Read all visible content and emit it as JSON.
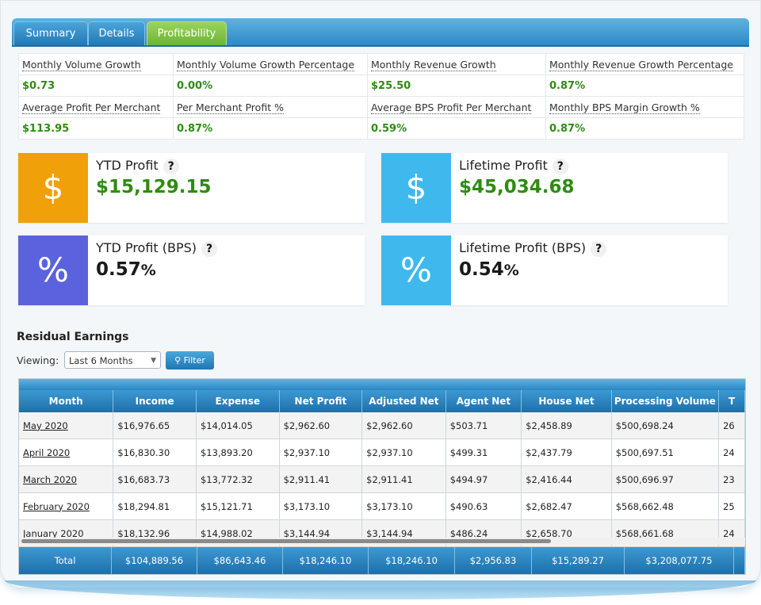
{
  "tabs": [
    {
      "label": "Summary",
      "active": false
    },
    {
      "label": "Details",
      "active": false
    },
    {
      "label": "Profitability",
      "active": true
    }
  ],
  "metrics": {
    "row1": [
      {
        "label": "Monthly Volume Growth",
        "value": "$0.73"
      },
      {
        "label": "Monthly Volume Growth Percentage",
        "value": "0.00%"
      },
      {
        "label": "Monthly Revenue Growth",
        "value": "$25.50"
      },
      {
        "label": "Monthly Revenue Growth Percentage",
        "value": "0.87%"
      }
    ],
    "row2": [
      {
        "label": "Average Profit Per Merchant",
        "value": "$113.95"
      },
      {
        "label": "Per Merchant Profit %",
        "value": "0.87%"
      },
      {
        "label": "Average BPS Profit Per Merchant",
        "value": "0.59%"
      },
      {
        "label": "Monthly BPS Margin Growth %",
        "value": "0.87%"
      }
    ]
  },
  "cards": {
    "ytd_profit": {
      "title": "YTD Profit",
      "help": "?",
      "value": "$15,129.15",
      "icon_glyph": "$",
      "icon": "dollar-icon",
      "color": "#f0a008"
    },
    "lifetime_profit": {
      "title": "Lifetime Profit",
      "help": "?",
      "value": "$45,034.68",
      "icon_glyph": "$",
      "icon": "dollar-icon",
      "color": "#3fb9ed"
    },
    "ytd_bps": {
      "title": "YTD Profit (BPS)",
      "help": "?",
      "value": "0.57",
      "unit": "%",
      "icon_glyph": "%",
      "icon": "percent-icon",
      "color": "#5a63dd"
    },
    "lifetime_bps": {
      "title": "Lifetime Profit (BPS)",
      "help": "?",
      "value": "0.54",
      "unit": "%",
      "icon_glyph": "%",
      "icon": "percent-icon",
      "color": "#3fb9ed"
    }
  },
  "residual": {
    "title": "Residual Earnings",
    "viewing_label": "Viewing:",
    "select_value": "Last 6 Months",
    "filter_label": "Filter"
  },
  "table": {
    "headers": [
      "Month",
      "Income",
      "Expense",
      "Net Profit",
      "Adjusted Net",
      "Agent Net",
      "House Net",
      "Processing Volume",
      "T"
    ],
    "rows": [
      [
        "May 2020",
        "$16,976.65",
        "$14,014.05",
        "$2,962.60",
        "$2,962.60",
        "$503.71",
        "$2,458.89",
        "$500,698.24",
        "26"
      ],
      [
        "April 2020",
        "$16,830.30",
        "$13,893.20",
        "$2,937.10",
        "$2,937.10",
        "$499.31",
        "$2,437.79",
        "$500,697.51",
        "24"
      ],
      [
        "March 2020",
        "$16,683.73",
        "$13,772.32",
        "$2,911.41",
        "$2,911.41",
        "$494.97",
        "$2,416.44",
        "$500,696.97",
        "23"
      ],
      [
        "February 2020",
        "$18,294.81",
        "$15,121.71",
        "$3,173.10",
        "$3,173.10",
        "$490.63",
        "$2,682.47",
        "$568,662.48",
        "25"
      ],
      [
        "January 2020",
        "$18,132.96",
        "$14,988.02",
        "$3,144.94",
        "$3,144.94",
        "$486.24",
        "$2,658.70",
        "$568,661.68",
        "24"
      ]
    ],
    "totals": [
      "Total",
      "$104,889.56",
      "$86,643.46",
      "$18,246.10",
      "$18,246.10",
      "$2,956.83",
      "$15,289.27",
      "$3,208,077.75",
      ""
    ]
  }
}
